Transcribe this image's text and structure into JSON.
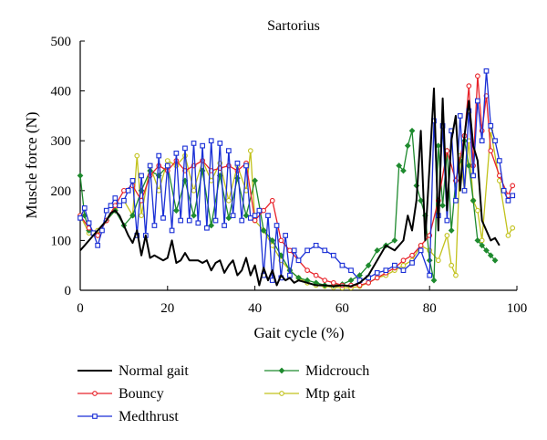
{
  "chart_data": {
    "type": "line",
    "title": "Sartorius",
    "xlabel": "Gait cycle (%)",
    "ylabel": "Muscle force (N)",
    "xlim": [
      0,
      100
    ],
    "ylim": [
      0,
      500
    ],
    "xticks": [
      "0",
      "20",
      "40",
      "60",
      "80",
      "100"
    ],
    "yticks": [
      "0",
      "100",
      "200",
      "300",
      "400",
      "500"
    ],
    "grid": false,
    "legend_position": "bottom",
    "series": [
      {
        "name": "Normal gait",
        "color": "#000000",
        "marker": "none",
        "x": [
          0,
          1,
          2,
          3,
          4,
          5,
          6,
          7,
          8,
          9,
          10,
          11,
          12,
          13,
          14,
          15,
          16,
          17,
          18,
          19,
          20,
          21,
          22,
          23,
          24,
          25,
          26,
          27,
          28,
          29,
          30,
          31,
          32,
          33,
          34,
          35,
          36,
          37,
          38,
          39,
          40,
          41,
          42,
          43,
          44,
          45,
          46,
          47,
          48,
          49,
          50,
          52,
          54,
          56,
          58,
          60,
          62,
          64,
          66,
          68,
          70,
          72,
          74,
          75,
          76,
          77,
          78,
          79,
          80,
          81,
          82,
          83,
          84,
          85,
          86,
          87,
          88,
          89,
          90,
          91,
          92,
          93,
          94,
          95,
          96
        ],
        "y": [
          80,
          90,
          100,
          110,
          120,
          130,
          140,
          155,
          160,
          150,
          130,
          110,
          95,
          120,
          70,
          110,
          65,
          70,
          65,
          60,
          65,
          100,
          55,
          60,
          75,
          60,
          60,
          60,
          55,
          60,
          40,
          55,
          60,
          35,
          50,
          60,
          30,
          40,
          65,
          30,
          50,
          10,
          45,
          20,
          40,
          10,
          30,
          20,
          25,
          15,
          20,
          15,
          10,
          10,
          8,
          10,
          8,
          15,
          30,
          60,
          90,
          80,
          100,
          150,
          120,
          180,
          320,
          100,
          250,
          405,
          120,
          385,
          160,
          300,
          350,
          200,
          310,
          380,
          290,
          260,
          140,
          120,
          100,
          105,
          90
        ]
      },
      {
        "name": "Bouncy",
        "color": "#e8232a",
        "marker": "circle",
        "x": [
          0,
          2,
          4,
          6,
          8,
          10,
          12,
          14,
          16,
          18,
          20,
          22,
          24,
          26,
          28,
          30,
          32,
          34,
          36,
          38,
          40,
          42,
          44,
          46,
          48,
          50,
          52,
          54,
          56,
          58,
          60,
          62,
          64,
          66,
          68,
          70,
          72,
          74,
          76,
          78,
          80,
          82,
          84,
          86,
          88,
          89,
          90,
          91,
          92,
          93,
          94,
          96,
          98,
          99
        ],
        "y": [
          150,
          125,
          110,
          140,
          170,
          200,
          210,
          180,
          230,
          250,
          240,
          260,
          240,
          250,
          260,
          240,
          245,
          250,
          240,
          255,
          140,
          160,
          180,
          100,
          80,
          60,
          40,
          30,
          20,
          15,
          10,
          10,
          10,
          15,
          25,
          35,
          45,
          60,
          70,
          90,
          110,
          180,
          280,
          220,
          310,
          410,
          250,
          430,
          320,
          390,
          280,
          230,
          190,
          210
        ]
      },
      {
        "name": "Medthrust",
        "color": "#1a2fd6",
        "marker": "square",
        "x": [
          0,
          1,
          2,
          3,
          4,
          5,
          6,
          7,
          8,
          9,
          10,
          11,
          12,
          13,
          14,
          15,
          16,
          17,
          18,
          19,
          20,
          21,
          22,
          23,
          24,
          25,
          26,
          27,
          28,
          29,
          30,
          31,
          32,
          33,
          34,
          35,
          36,
          37,
          38,
          39,
          40,
          41,
          42,
          43,
          44,
          45,
          46,
          47,
          48,
          49,
          50,
          52,
          54,
          56,
          58,
          60,
          62,
          64,
          66,
          68,
          70,
          72,
          74,
          76,
          78,
          80,
          81,
          82,
          83,
          84,
          85,
          86,
          87,
          88,
          89,
          90,
          91,
          92,
          93,
          94,
          95,
          96,
          97,
          98,
          99
        ],
        "y": [
          145,
          165,
          135,
          115,
          90,
          120,
          160,
          170,
          185,
          170,
          180,
          200,
          220,
          110,
          230,
          110,
          250,
          130,
          270,
          145,
          250,
          120,
          275,
          140,
          285,
          140,
          295,
          135,
          290,
          125,
          300,
          140,
          295,
          130,
          280,
          150,
          255,
          140,
          250,
          145,
          150,
          160,
          30,
          150,
          20,
          130,
          25,
          110,
          30,
          80,
          60,
          80,
          90,
          80,
          70,
          50,
          40,
          20,
          25,
          35,
          40,
          50,
          40,
          55,
          80,
          30,
          340,
          150,
          330,
          140,
          320,
          180,
          350,
          200,
          360,
          230,
          380,
          300,
          440,
          330,
          300,
          260,
          200,
          180,
          190
        ]
      },
      {
        "name": "Midcrouch",
        "color": "#1e8a2e",
        "marker": "diamond",
        "x": [
          0,
          1,
          2,
          4,
          6,
          8,
          10,
          12,
          14,
          16,
          18,
          20,
          22,
          24,
          26,
          28,
          30,
          32,
          34,
          36,
          38,
          40,
          42,
          44,
          46,
          48,
          50,
          52,
          54,
          56,
          58,
          60,
          62,
          64,
          66,
          68,
          70,
          72,
          73,
          74,
          75,
          76,
          77,
          78,
          79,
          80,
          81,
          82,
          83,
          84,
          85,
          86,
          87,
          88,
          89,
          90,
          91,
          92,
          93,
          94,
          95
        ],
        "y": [
          230,
          150,
          120,
          110,
          140,
          160,
          130,
          150,
          200,
          240,
          230,
          250,
          160,
          220,
          150,
          240,
          130,
          230,
          145,
          225,
          150,
          220,
          120,
          100,
          70,
          40,
          25,
          20,
          15,
          10,
          10,
          12,
          20,
          30,
          50,
          80,
          90,
          100,
          250,
          240,
          290,
          320,
          210,
          180,
          150,
          60,
          20,
          290,
          170,
          280,
          120,
          220,
          260,
          300,
          250,
          180,
          100,
          90,
          80,
          70,
          60
        ]
      },
      {
        "name": "Mtp gait",
        "color": "#c2c21c",
        "marker": "circle",
        "x": [
          0,
          2,
          4,
          6,
          8,
          10,
          12,
          13,
          14,
          16,
          18,
          20,
          22,
          24,
          26,
          28,
          30,
          32,
          34,
          36,
          38,
          39,
          40,
          42,
          44,
          46,
          48,
          50,
          52,
          54,
          56,
          58,
          60,
          62,
          64,
          66,
          68,
          70,
          72,
          74,
          76,
          78,
          80,
          82,
          84,
          85,
          86,
          87,
          88,
          89,
          90,
          91,
          92,
          94,
          96,
          98,
          99
        ],
        "y": [
          150,
          115,
          120,
          140,
          160,
          180,
          150,
          270,
          150,
          250,
          200,
          260,
          250,
          270,
          200,
          260,
          220,
          255,
          180,
          250,
          200,
          280,
          140,
          120,
          90,
          60,
          40,
          25,
          15,
          10,
          8,
          6,
          5,
          5,
          8,
          15,
          25,
          30,
          40,
          50,
          60,
          90,
          80,
          60,
          110,
          50,
          30,
          270,
          200,
          300,
          180,
          160,
          100,
          320,
          220,
          110,
          125
        ]
      }
    ]
  }
}
